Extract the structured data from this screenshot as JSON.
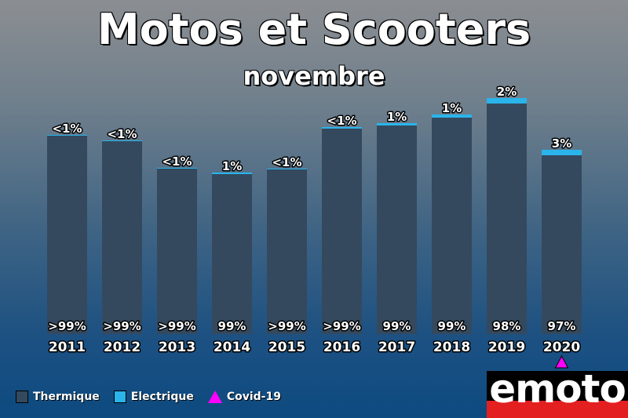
{
  "title": "Motos et Scooters",
  "subtitle": "novembre",
  "colors": {
    "thermique": "#34495e",
    "electrique": "#2ab4ea",
    "covid": "#ff00ff"
  },
  "legend": {
    "thermique": "Thermique",
    "electrique": "Electrique",
    "covid": "Covid-19"
  },
  "logo": "emoto",
  "chart_data": {
    "type": "bar",
    "stacked": true,
    "categories": [
      "2011",
      "2012",
      "2013",
      "2014",
      "2015",
      "2016",
      "2017",
      "2018",
      "2019",
      "2020"
    ],
    "series": [
      {
        "name": "Thermique",
        "values": [
          253,
          246,
          211,
          204,
          210,
          262,
          266,
          276,
          294,
          228
        ]
      },
      {
        "name": "Electrique",
        "values": [
          1,
          1,
          1,
          2,
          1,
          2,
          3,
          4,
          7,
          7
        ]
      }
    ],
    "top_labels": [
      "<1%",
      "<1%",
      "<1%",
      "1%",
      "<1%",
      "<1%",
      "1%",
      "1%",
      "2%",
      "3%"
    ],
    "bottom_labels": [
      ">99%",
      ">99%",
      ">99%",
      "99%",
      ">99%",
      ">99%",
      "99%",
      "99%",
      "98%",
      "97%"
    ],
    "marker_category": "2020",
    "grid": false,
    "legend_position": "bottom-left"
  }
}
